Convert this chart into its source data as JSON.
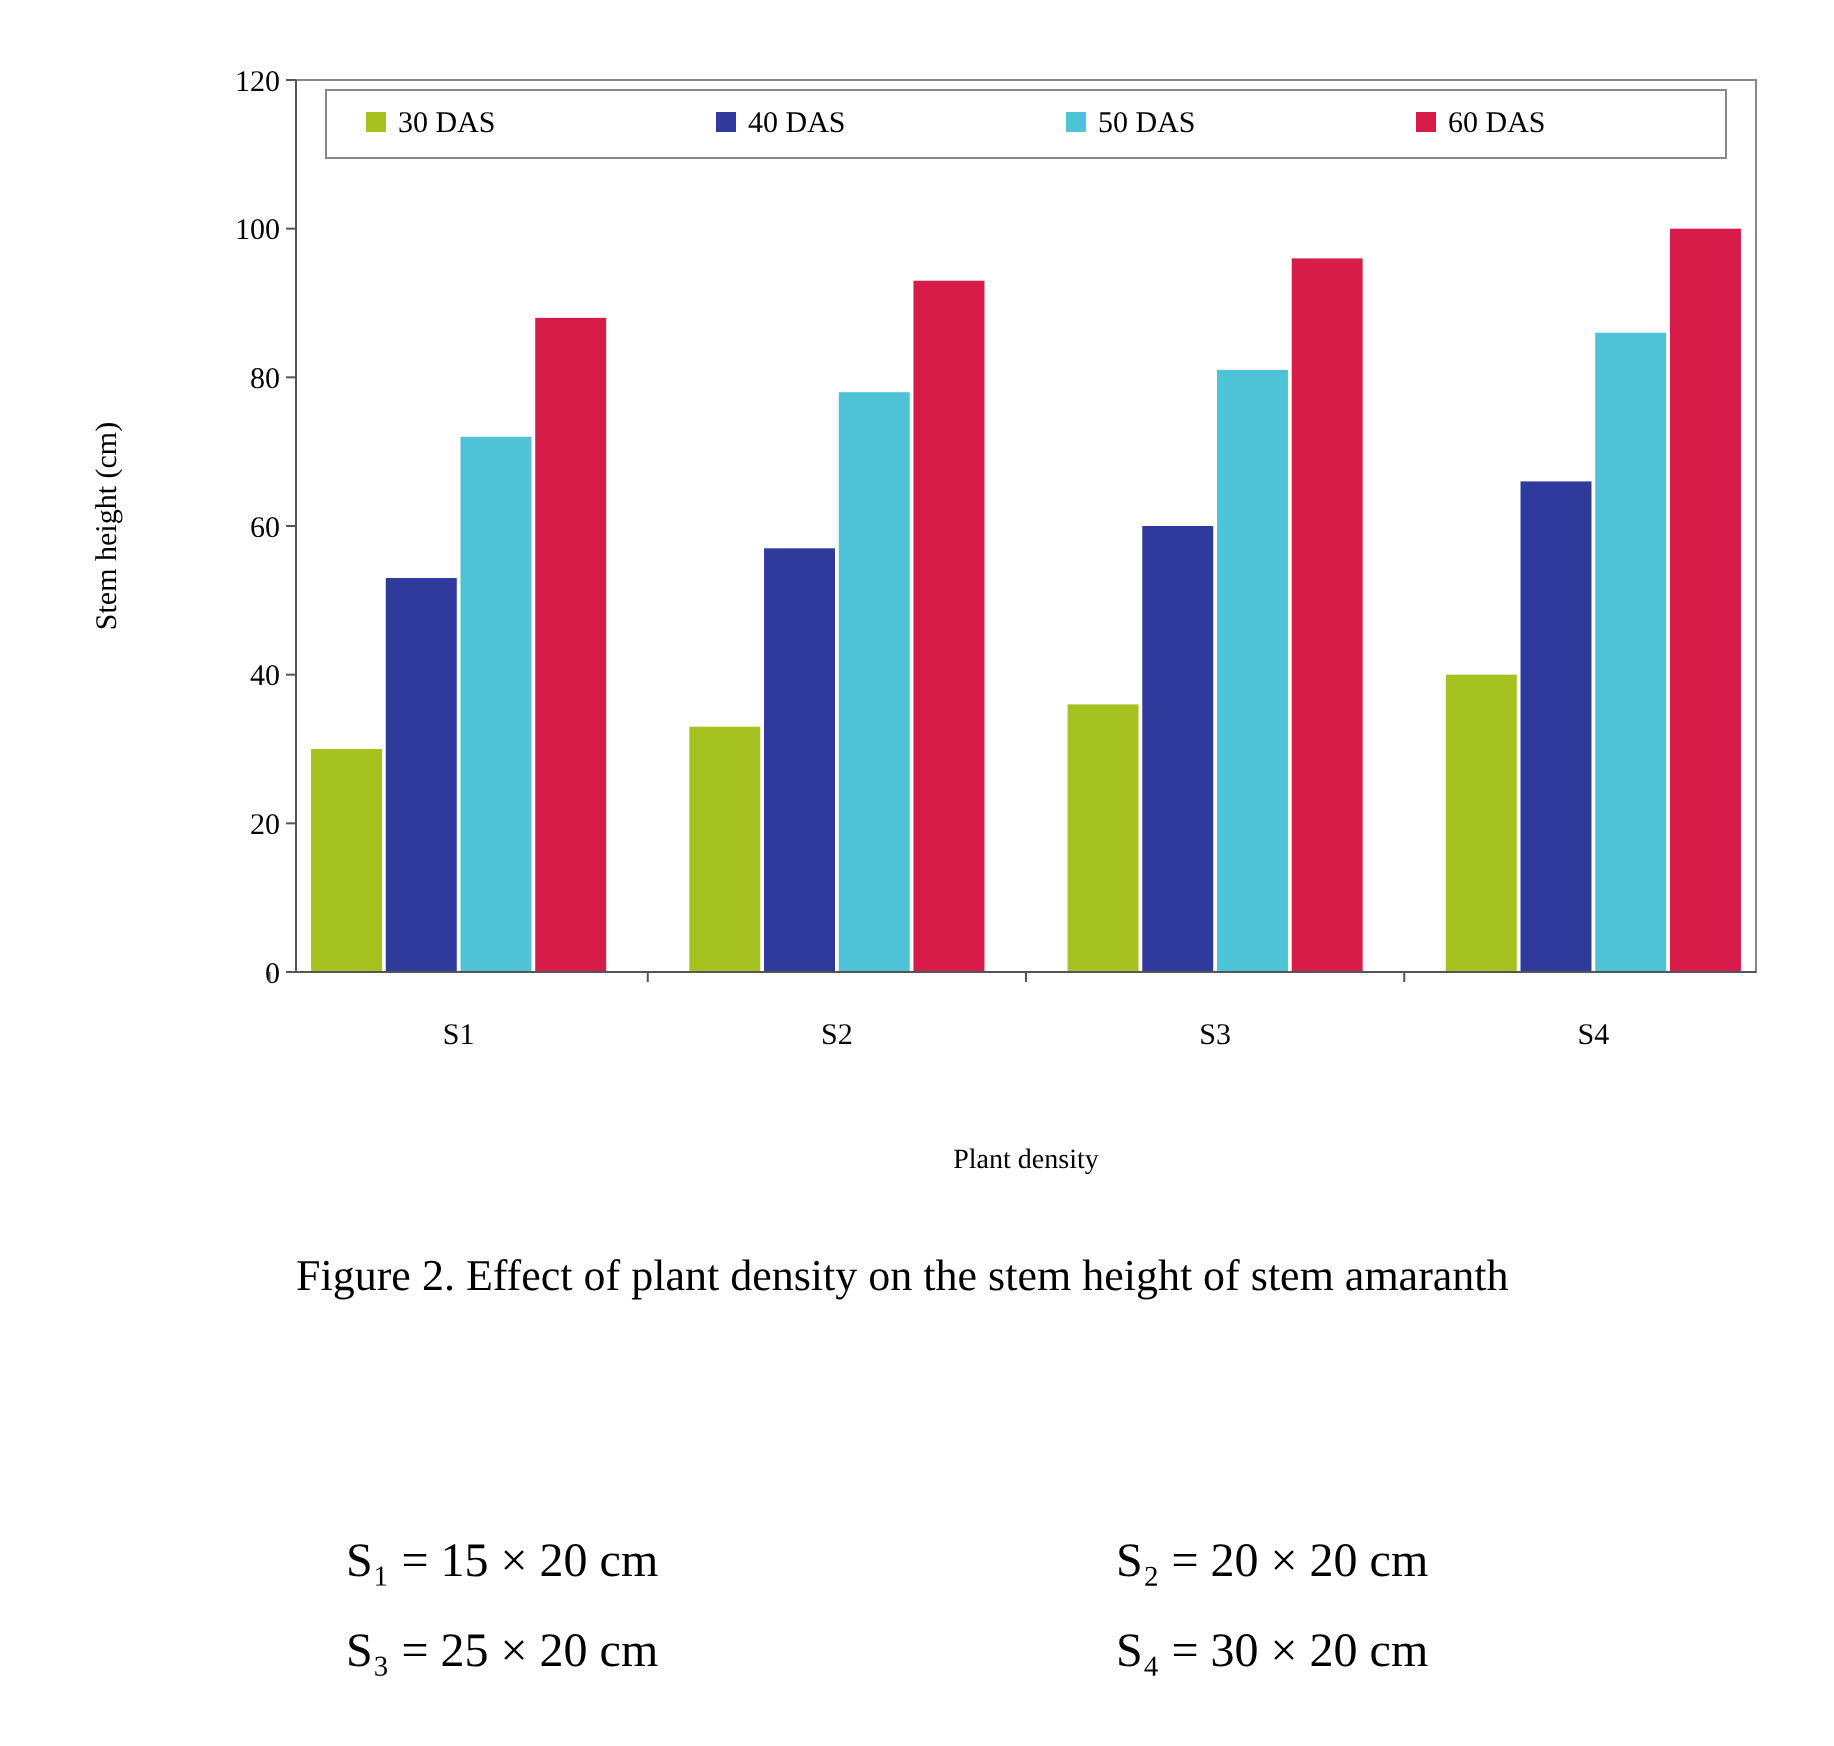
{
  "chart_data": {
    "type": "bar",
    "xlabel": "Plant density",
    "ylabel": "Stem height (cm)",
    "categories": [
      "S1",
      "S2",
      "S3",
      "S4"
    ],
    "series": [
      {
        "name": "30 DAS",
        "color": "#a6c21e",
        "values": [
          30,
          33,
          36,
          40
        ]
      },
      {
        "name": "40 DAS",
        "color": "#2e3a9c",
        "values": [
          53,
          57,
          60,
          66
        ]
      },
      {
        "name": "50 DAS",
        "color": "#4ec3d8",
        "values": [
          72,
          78,
          81,
          86
        ]
      },
      {
        "name": "60 DAS",
        "color": "#d81c4a",
        "values": [
          88,
          93,
          96,
          100
        ]
      }
    ],
    "ylim": [
      0,
      120
    ],
    "yticks": [
      0,
      20,
      40,
      60,
      80,
      100,
      120
    ],
    "legend": "top",
    "annotations": [
      "Figure 2. Effect of plant density on the stem height of stem amaranth",
      "S₁ = 15 × 20 cm",
      "S₂ = 20 × 20 cm",
      "S₃ = 25 × 20 cm",
      "S₄ = 30 × 20 cm"
    ]
  }
}
